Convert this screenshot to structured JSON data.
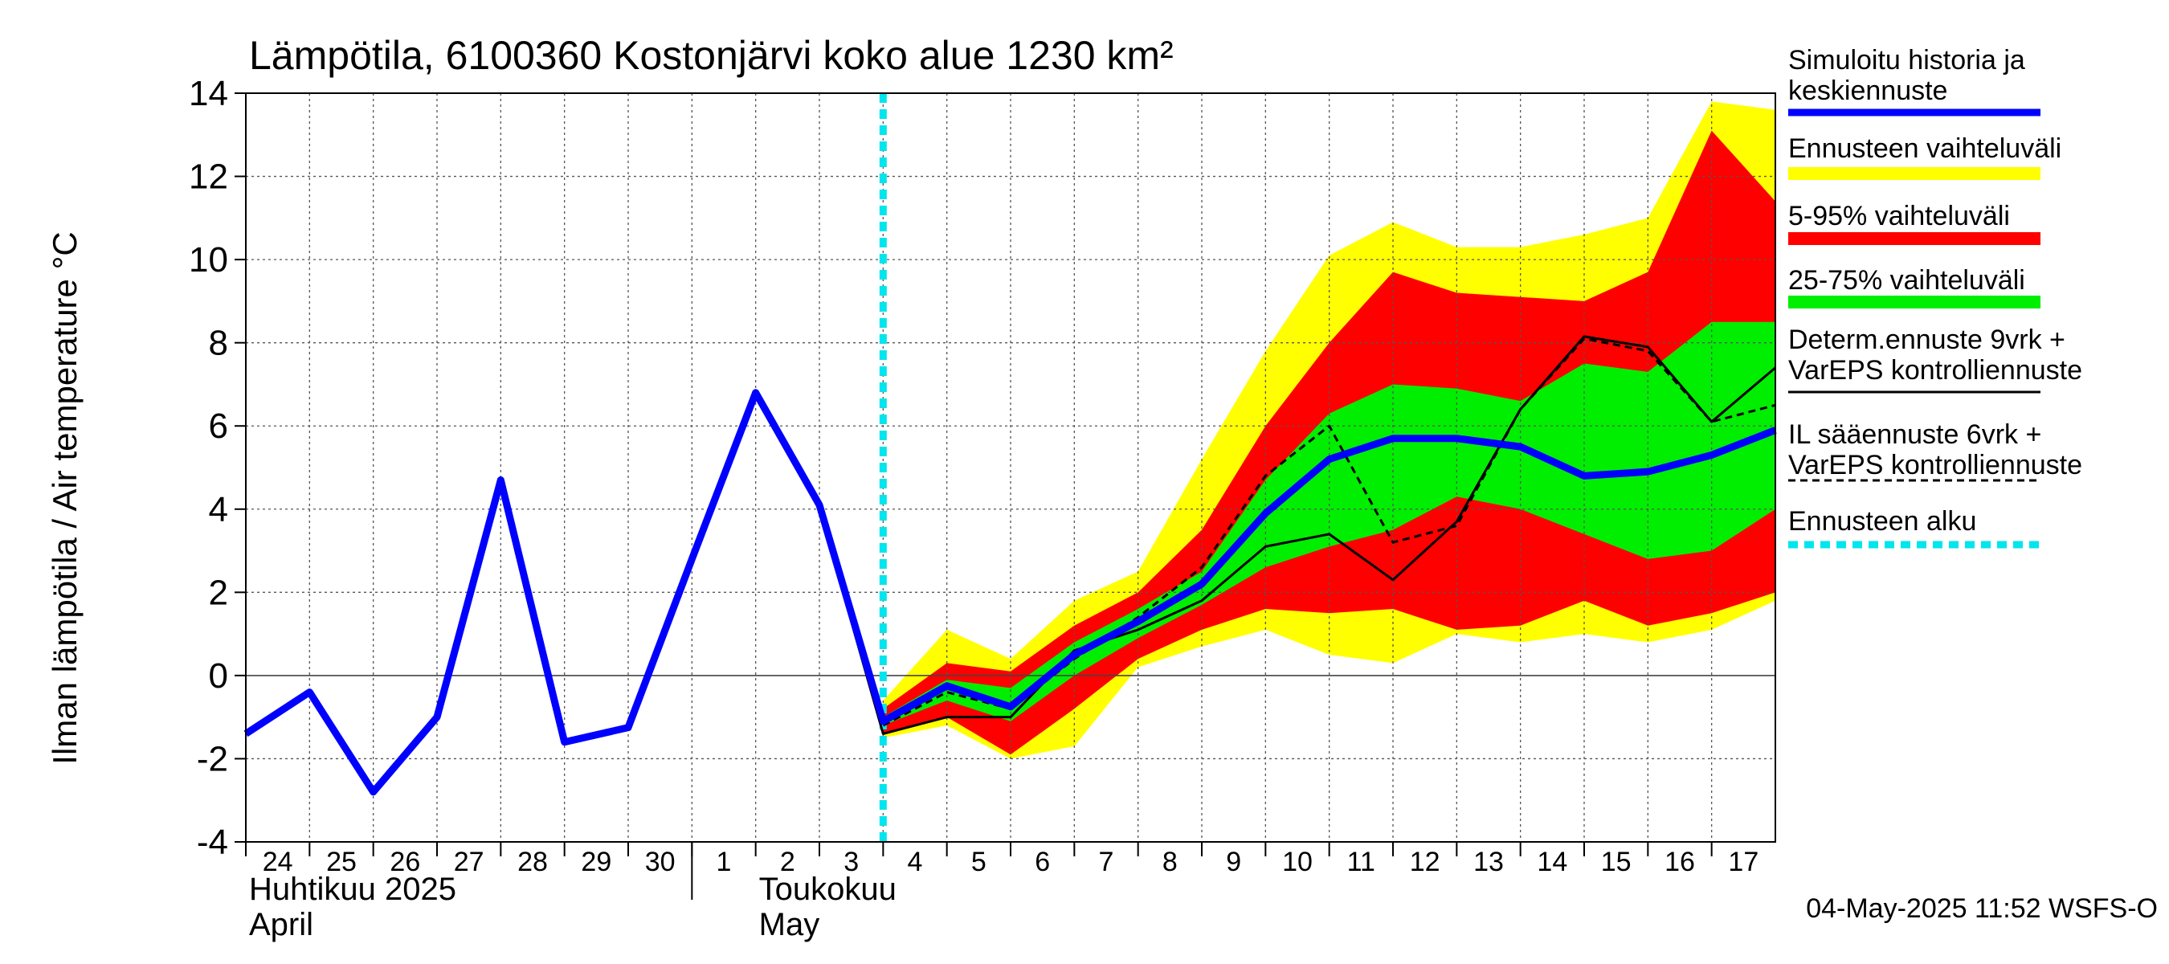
{
  "chart_data": {
    "type": "area",
    "title": "Lämpötila, 6100360 Kostonjärvi koko alue 1230 km²",
    "ylabel": "Ilman lämpötila / Air temperature   °C",
    "ylim": [
      -4,
      14
    ],
    "yticks": [
      -4,
      -2,
      0,
      2,
      4,
      6,
      8,
      10,
      12,
      14
    ],
    "xlim": [
      0,
      24
    ],
    "day_labels": [
      "24",
      "25",
      "26",
      "27",
      "28",
      "29",
      "30",
      "1",
      "2",
      "3",
      "4",
      "5",
      "6",
      "7",
      "8",
      "9",
      "10",
      "11",
      "12",
      "13",
      "14",
      "15",
      "16",
      "17"
    ],
    "month_labels": [
      {
        "fi": "Huhtikuu  2025",
        "en": "April",
        "x": 0
      },
      {
        "fi": "Toukokuu",
        "en": "May",
        "x": 8
      }
    ],
    "month_boundary_x": 7,
    "forecast_start_x": 10,
    "timestamp": "04-May-2025 11:52 WSFS-O",
    "legend": [
      {
        "label": "Simuloitu historia ja\nkeskiennuste",
        "color": "#0000ff",
        "style": "thick"
      },
      {
        "label": "Ennusteen vaihteluväli",
        "color": "#ffff00",
        "style": "band"
      },
      {
        "label": "5-95% vaihteluväli",
        "color": "#ff0000",
        "style": "band"
      },
      {
        "label": "25-75% vaihteluväli",
        "color": "#00ee00",
        "style": "band"
      },
      {
        "label": "Determ.ennuste 9vrk +\nVarEPS kontrolliennuste",
        "color": "#000000",
        "style": "line"
      },
      {
        "label": "IL sääennuste 6vrk  +\n  VarEPS kontrolliennuste",
        "color": "#000000",
        "style": "dashed"
      },
      {
        "label": "Ennusteen alku",
        "color": "#00e5ee",
        "style": "dotted"
      }
    ],
    "bands": {
      "x": [
        10,
        11,
        12,
        13,
        14,
        15,
        16,
        17,
        18,
        19,
        20,
        21,
        22,
        23,
        24
      ],
      "full_min": [
        -1.5,
        -1.2,
        -2.0,
        -1.7,
        0.2,
        0.7,
        1.1,
        0.5,
        0.3,
        1.0,
        0.8,
        1.0,
        0.8,
        1.1,
        1.8
      ],
      "full_max": [
        -0.6,
        1.1,
        0.4,
        1.8,
        2.5,
        5.2,
        7.8,
        10.1,
        10.9,
        10.3,
        10.3,
        10.6,
        11.0,
        13.8,
        13.6
      ],
      "p5": [
        -1.4,
        -1.0,
        -1.9,
        -0.8,
        0.4,
        1.1,
        1.6,
        1.5,
        1.6,
        1.1,
        1.2,
        1.8,
        1.2,
        1.5,
        2.0
      ],
      "p95": [
        -0.8,
        0.3,
        0.1,
        1.2,
        2.0,
        3.5,
        6.0,
        8.0,
        9.7,
        9.2,
        9.1,
        9.0,
        9.7,
        13.1,
        11.4
      ],
      "p25": [
        -1.2,
        -0.6,
        -1.1,
        0.0,
        0.9,
        1.7,
        2.6,
        3.1,
        3.5,
        4.3,
        4.0,
        3.4,
        2.8,
        3.0,
        4.0
      ],
      "p75": [
        -1.0,
        -0.1,
        -0.3,
        0.8,
        1.6,
        2.5,
        4.7,
        6.3,
        7.0,
        6.9,
        6.6,
        7.5,
        7.3,
        8.5,
        8.5
      ]
    },
    "series": [
      {
        "name": "Simuloitu historia ja keskiennuste",
        "x": [
          0,
          1,
          2,
          3,
          4,
          5,
          6,
          7,
          8,
          9,
          10,
          11,
          12,
          13,
          14,
          15,
          16,
          17,
          18,
          19,
          20,
          21,
          22,
          23,
          24
        ],
        "values": [
          -1.4,
          -0.4,
          -2.8,
          -1.0,
          4.7,
          -1.6,
          -1.25,
          2.8,
          6.8,
          4.1,
          -1.1,
          -0.25,
          -0.75,
          0.5,
          1.3,
          2.2,
          3.9,
          5.2,
          5.7,
          5.7,
          5.5,
          4.8,
          4.9,
          5.3,
          5.9
        ]
      },
      {
        "name": "Determ.ennuste 9vrk + VarEPS kontrolliennuste",
        "x": [
          8,
          9,
          10,
          11,
          12,
          13,
          14,
          15,
          16,
          17,
          18,
          19,
          20,
          21,
          22,
          23,
          24
        ],
        "values": [
          6.7,
          4.0,
          -1.4,
          -1.0,
          -1.0,
          0.6,
          1.1,
          1.8,
          3.1,
          3.4,
          2.3,
          3.7,
          6.4,
          8.15,
          7.9,
          6.1,
          7.4
        ]
      },
      {
        "name": "IL sääennuste 6vrk + VarEPS kontrolliennuste",
        "x": [
          10,
          11,
          12,
          13,
          14,
          15,
          16,
          17,
          18,
          19,
          20,
          21,
          22,
          23,
          24
        ],
        "values": [
          -1.2,
          -0.4,
          -0.8,
          0.4,
          1.4,
          2.6,
          4.8,
          6.0,
          3.2,
          3.6,
          6.4,
          8.1,
          7.8,
          6.1,
          6.5
        ]
      }
    ]
  }
}
